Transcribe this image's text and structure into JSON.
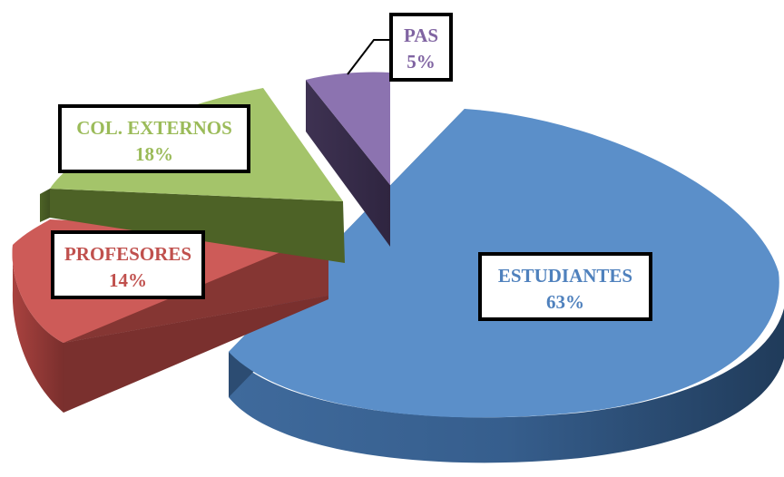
{
  "chart_data": {
    "type": "pie",
    "title": "",
    "categories": [
      "ESTUDIANTES",
      "PROFESORES",
      "COL. EXTERNOS",
      "PAS"
    ],
    "values": [
      63,
      14,
      18,
      5
    ],
    "labels": [
      {
        "name": "ESTUDIANTES",
        "percent": "63%",
        "color": "#4f81bd"
      },
      {
        "name": "PROFESORES",
        "percent": "14%",
        "color": "#c0504d"
      },
      {
        "name": "COL. EXTERNOS",
        "percent": "18%",
        "color": "#9bbb59"
      },
      {
        "name": "PAS",
        "percent": "5%",
        "color": "#8064a2"
      }
    ],
    "style": "3d-exploded",
    "legend": "none"
  }
}
